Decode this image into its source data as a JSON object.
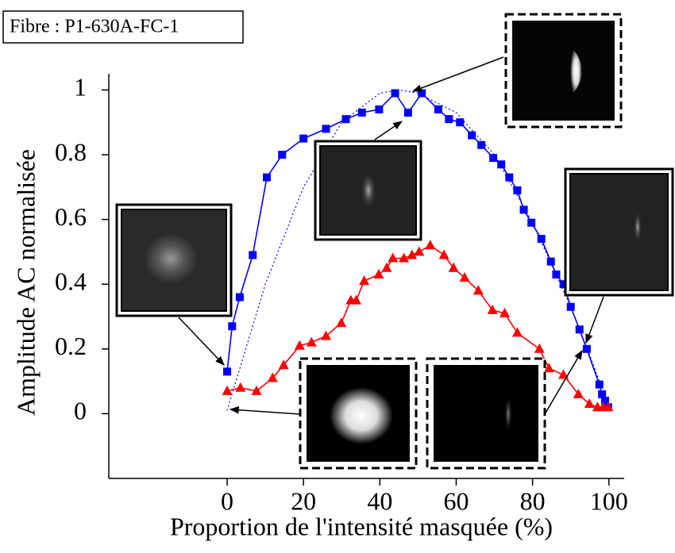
{
  "chart_data": {
    "type": "line",
    "annotation": "Fibre : P1-630A-FC-1",
    "x_label": "Proportion de l'intensité masquée (%)",
    "y_label": "Amplitude AC normalisée",
    "xlim": [
      -31,
      104
    ],
    "ylim": [
      -0.2,
      1.05
    ],
    "xticks": [
      0,
      20,
      40,
      60,
      80,
      100
    ],
    "yticks": [
      0,
      0.2,
      0.4,
      0.6,
      0.8,
      1
    ],
    "series": [
      {
        "color": "#0000ff",
        "marker": "square",
        "style": "solid",
        "x": [
          0,
          1.3,
          3.3,
          6.7,
          10.4,
          14.4,
          20,
          25.9,
          31.1,
          35.3,
          39.8,
          44,
          47.4,
          51,
          55.3,
          58.1,
          61,
          64.1,
          66.6,
          69.7,
          71.8,
          73.9,
          76,
          77.7,
          79.7,
          82.3,
          84.8,
          86.2,
          88.1,
          90,
          92.3,
          94.2,
          97.5,
          98.2,
          99,
          99.8
        ],
        "values": [
          0.13,
          0.27,
          0.36,
          0.49,
          0.73,
          0.8,
          0.85,
          0.88,
          0.91,
          0.93,
          0.94,
          0.99,
          0.93,
          0.99,
          0.94,
          0.91,
          0.9,
          0.86,
          0.83,
          0.79,
          0.77,
          0.73,
          0.69,
          0.63,
          0.59,
          0.54,
          0.47,
          0.43,
          0.4,
          0.33,
          0.26,
          0.2,
          0.09,
          0.06,
          0.04,
          0.02
        ]
      },
      {
        "color": "#ff0000",
        "marker": "triangle",
        "style": "solid",
        "x": [
          0,
          3.5,
          7.7,
          11.9,
          14.8,
          19,
          22.1,
          25.9,
          29.9,
          32.4,
          33.8,
          35.9,
          39.7,
          41.8,
          43.4,
          46.3,
          48.4,
          50.3,
          53.2,
          56.8,
          59.3,
          62.2,
          65.8,
          69.5,
          72.7,
          76,
          81.8,
          84.3,
          88.1,
          92,
          94.9,
          97,
          98.5,
          99.8
        ],
        "values": [
          0.07,
          0.08,
          0.07,
          0.11,
          0.15,
          0.21,
          0.22,
          0.24,
          0.28,
          0.35,
          0.35,
          0.41,
          0.43,
          0.45,
          0.48,
          0.48,
          0.49,
          0.5,
          0.52,
          0.49,
          0.45,
          0.42,
          0.38,
          0.32,
          0.31,
          0.25,
          0.2,
          0.14,
          0.12,
          0.06,
          0.03,
          0.02,
          0.02,
          0.02
        ]
      },
      {
        "color": "#0000ff",
        "marker": "none",
        "style": "dotted",
        "x": [
          0,
          10,
          20,
          30,
          40,
          45,
          50,
          60,
          70,
          80,
          90,
          95,
          100
        ],
        "values": [
          0.01,
          0.4,
          0.7,
          0.9,
          0.99,
          1.0,
          0.99,
          0.93,
          0.8,
          0.59,
          0.33,
          0.18,
          0.02
        ]
      }
    ]
  }
}
